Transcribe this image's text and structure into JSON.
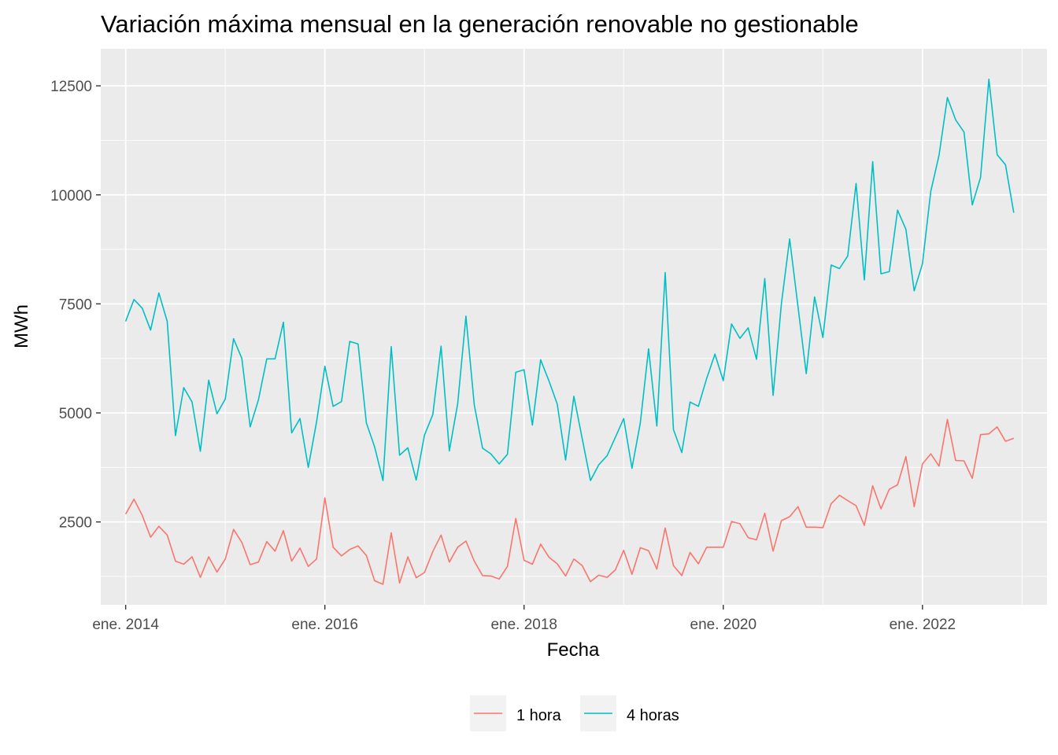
{
  "chart_data": {
    "type": "line",
    "title": "Variación máxima mensual en la generación renovable no gestionable",
    "xlabel": "Fecha",
    "ylabel": "MWh",
    "x_start": "2014-01",
    "x_end": "2022-12",
    "x_frequency": "monthly",
    "x_ticks": [
      {
        "date": "2014-01",
        "label": "ene. 2014"
      },
      {
        "date": "2016-01",
        "label": "ene. 2016"
      },
      {
        "date": "2018-01",
        "label": "ene. 2018"
      },
      {
        "date": "2020-01",
        "label": "ene. 2020"
      },
      {
        "date": "2022-01",
        "label": "ene. 2022"
      }
    ],
    "y_ticks": [
      2500,
      5000,
      7500,
      10000,
      12500
    ],
    "ylim": [
      600,
      13350
    ],
    "xlim": [
      "2013-10",
      "2023-04"
    ],
    "grid": true,
    "legend_position": "bottom",
    "series": [
      {
        "name": "1 hora",
        "color": "#F8766D",
        "values": [
          2680,
          3020,
          2650,
          2150,
          2400,
          2200,
          1600,
          1530,
          1700,
          1230,
          1700,
          1350,
          1650,
          2330,
          2030,
          1520,
          1580,
          2050,
          1830,
          2300,
          1600,
          1900,
          1480,
          1650,
          3050,
          1920,
          1720,
          1870,
          1950,
          1730,
          1150,
          1070,
          2250,
          1100,
          1700,
          1220,
          1340,
          1820,
          2200,
          1580,
          1920,
          2060,
          1600,
          1270,
          1260,
          1190,
          1480,
          2580,
          1620,
          1530,
          1990,
          1690,
          1540,
          1260,
          1650,
          1500,
          1130,
          1280,
          1230,
          1400,
          1850,
          1300,
          1910,
          1840,
          1420,
          2360,
          1500,
          1270,
          1800,
          1540,
          1920,
          1920,
          1920,
          2510,
          2460,
          2140,
          2090,
          2700,
          1830,
          2530,
          2620,
          2850,
          2380,
          2380,
          2370,
          2920,
          3110,
          2990,
          2870,
          2420,
          3330,
          2800,
          3250,
          3350,
          4000,
          2850,
          3830,
          4060,
          3780,
          4850,
          3910,
          3900,
          3500,
          4500,
          4520,
          4680,
          4350,
          4420
        ]
      },
      {
        "name": "4 horas",
        "color": "#00BFC4",
        "values": [
          7100,
          7600,
          7400,
          6900,
          7750,
          7100,
          4480,
          5580,
          5250,
          4120,
          5750,
          4980,
          5320,
          6700,
          6250,
          4680,
          5300,
          6240,
          6240,
          7080,
          4540,
          4870,
          3750,
          4790,
          6070,
          5150,
          5260,
          6640,
          6580,
          4770,
          4220,
          3450,
          6520,
          4030,
          4200,
          3460,
          4490,
          4960,
          6530,
          4130,
          5210,
          7220,
          5180,
          4190,
          4060,
          3830,
          4050,
          5930,
          5990,
          4720,
          6220,
          5730,
          5200,
          3920,
          5380,
          4420,
          3450,
          3810,
          4020,
          4440,
          4870,
          3730,
          4770,
          6470,
          4700,
          8220,
          4620,
          4090,
          5250,
          5150,
          5790,
          6350,
          5740,
          7040,
          6710,
          6950,
          6230,
          8080,
          5400,
          7500,
          8990,
          7440,
          5900,
          7660,
          6730,
          8390,
          8310,
          8600,
          10260,
          8050,
          10760,
          8190,
          8240,
          9650,
          9210,
          7800,
          8420,
          10080,
          10910,
          12230,
          11720,
          11440,
          9770,
          10400,
          12650,
          10920,
          10690,
          9590
        ]
      }
    ]
  }
}
